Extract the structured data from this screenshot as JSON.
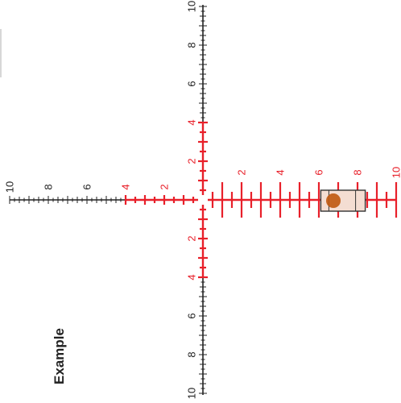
{
  "label": "Example",
  "colors": {
    "red": "#e8202a",
    "black": "#222222",
    "target_fill": "#c0580e",
    "box_fill": "#f4ddd2",
    "box_stroke": "#333333"
  },
  "vertical_axis": {
    "top_labels": [
      "10",
      "8",
      "6",
      "4",
      "2"
    ],
    "bottom_labels": [
      "2",
      "4",
      "6",
      "8",
      "10"
    ]
  },
  "horizontal_axis": {
    "left_labels": [
      "10",
      "8",
      "6",
      "4",
      "2"
    ],
    "right_labels": [
      "2",
      "4",
      "6",
      "8",
      "10"
    ]
  }
}
